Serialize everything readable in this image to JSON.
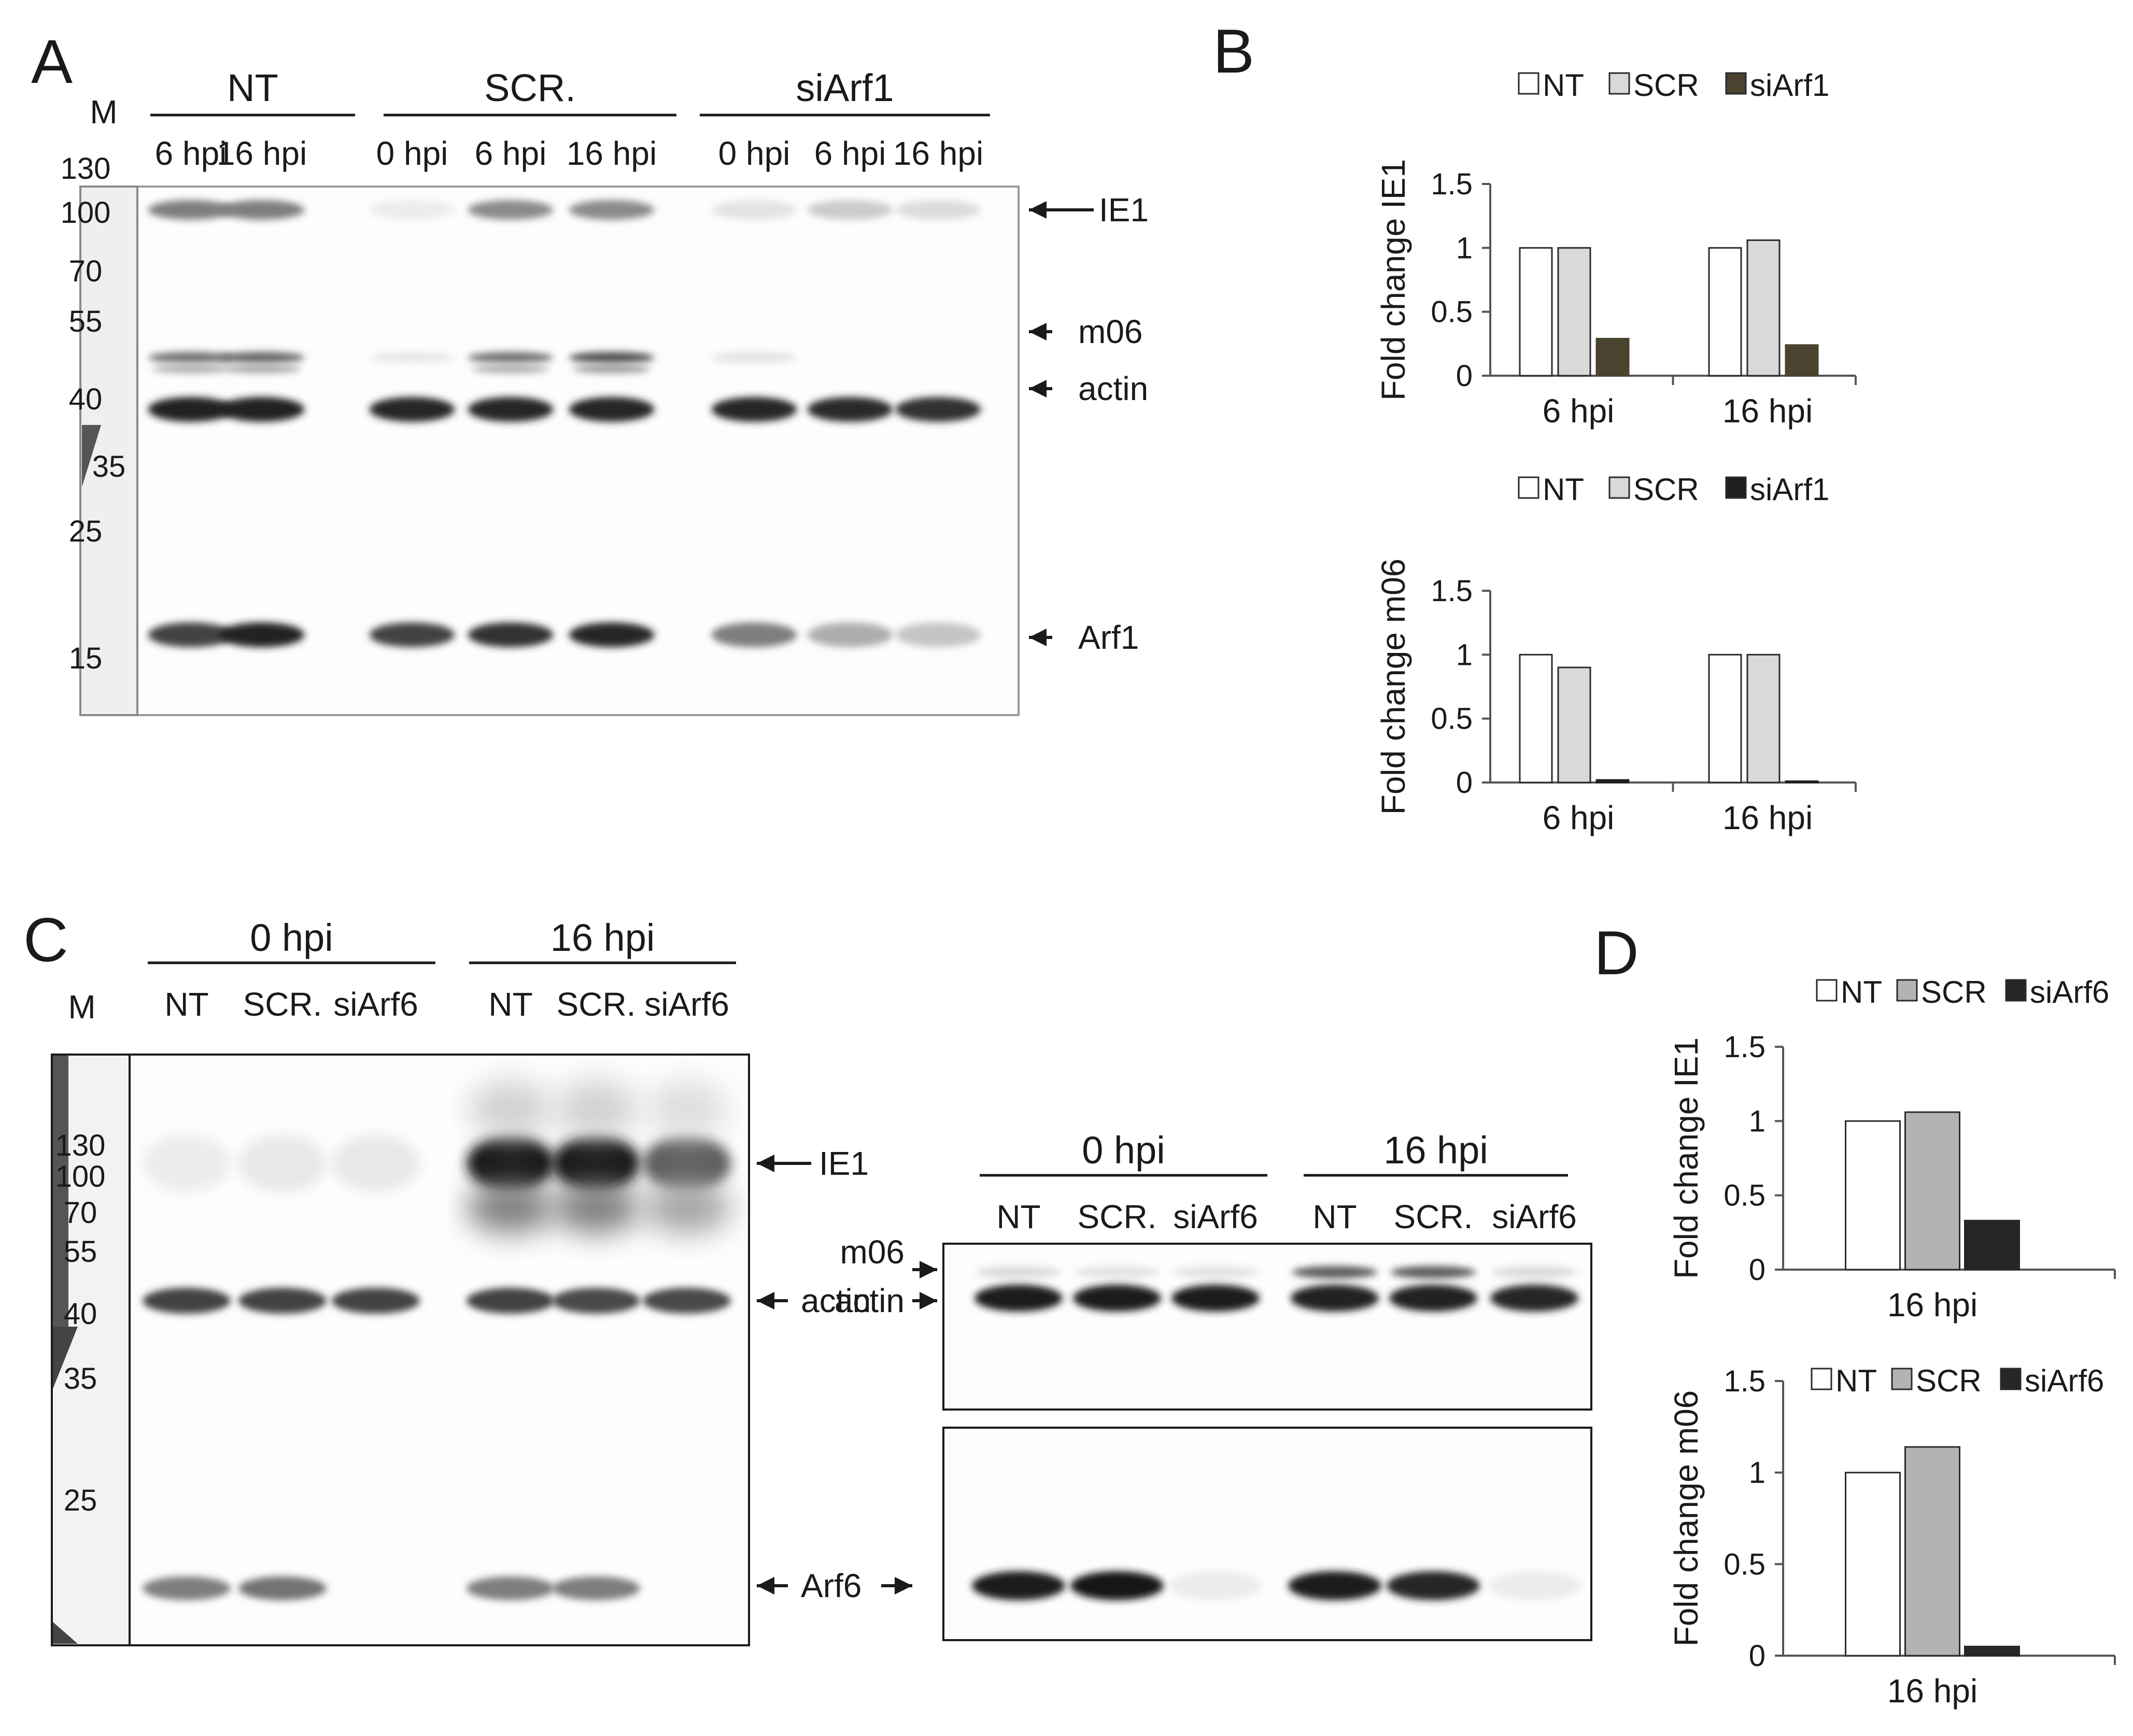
{
  "panels": {
    "A": {
      "letter": "A",
      "marker_header": "M",
      "groups": [
        {
          "name": "NT",
          "lanes": [
            "6 hpi",
            "16 hpi"
          ]
        },
        {
          "name": "SCR.",
          "lanes": [
            "0 hpi",
            "6 hpi",
            "16 hpi"
          ]
        },
        {
          "name": "siArf1",
          "lanes": [
            "0 hpi",
            "6 hpi",
            "16 hpi"
          ]
        }
      ],
      "markers": [
        "130",
        "100",
        "70",
        "55",
        "40",
        "35",
        "25",
        "15"
      ],
      "band_labels": [
        "IE1",
        "m06",
        "actin",
        "Arf1"
      ],
      "band_intensity": {
        "IE1": [
          0.55,
          0.55,
          0.08,
          0.5,
          0.5,
          0.12,
          0.22,
          0.15
        ],
        "m06": [
          0.6,
          0.65,
          0.1,
          0.6,
          0.75,
          0.12,
          0.0,
          0.0
        ],
        "actin": [
          0.95,
          0.95,
          0.92,
          0.92,
          0.92,
          0.92,
          0.9,
          0.88
        ],
        "Arf1": [
          0.8,
          0.95,
          0.8,
          0.88,
          0.92,
          0.55,
          0.35,
          0.25
        ]
      }
    },
    "B": {
      "letter": "B",
      "colors": {
        "NT": "#ffffff",
        "SCR": "#d9d9d9",
        "siArf1_ie1": "#4a4330",
        "siArf1_m06": "#1e1e1e"
      }
    },
    "C": {
      "letter": "C",
      "marker_header": "M",
      "groups": [
        {
          "name": "0 hpi",
          "lanes": [
            "NT",
            "SCR.",
            "siArf6"
          ]
        },
        {
          "name": "16 hpi",
          "lanes": [
            "NT",
            "SCR.",
            "siArf6"
          ]
        }
      ],
      "markers": [
        "130",
        "100",
        "70",
        "55",
        "40",
        "35",
        "25"
      ],
      "band_labels": [
        "IE1",
        "actin",
        "Arf6"
      ],
      "right_blot": {
        "groups": [
          {
            "name": "0 hpi",
            "lanes": [
              "NT",
              "SCR.",
              "siArf6"
            ]
          },
          {
            "name": "16 hpi",
            "lanes": [
              "NT",
              "SCR.",
              "siArf6"
            ]
          }
        ],
        "band_labels": [
          "m06",
          "actin"
        ]
      },
      "band_intensity": {
        "IE1": [
          0.08,
          0.1,
          0.1,
          0.98,
          0.98,
          0.7
        ],
        "actin": [
          0.8,
          0.8,
          0.8,
          0.8,
          0.78,
          0.78
        ],
        "Arf6": [
          0.55,
          0.6,
          0.0,
          0.55,
          0.55,
          0.0
        ],
        "m06": [
          0.15,
          0.12,
          0.12,
          0.7,
          0.7,
          0.15
        ],
        "actin_right": [
          0.97,
          0.97,
          0.97,
          0.95,
          0.95,
          0.92
        ],
        "Arf6_right": [
          0.97,
          0.98,
          0.08,
          0.97,
          0.92,
          0.08
        ]
      }
    },
    "D": {
      "letter": "D",
      "colors": {
        "NT": "#ffffff",
        "SCR": "#b3b3b3",
        "siArf6": "#262626"
      }
    }
  },
  "chart_data": [
    {
      "type": "bar",
      "panel": "B",
      "categories": [
        "6 hpi",
        "16 hpi"
      ],
      "series": [
        {
          "name": "NT",
          "values": [
            1.0,
            1.0
          ]
        },
        {
          "name": "SCR",
          "values": [
            1.0,
            1.06
          ]
        },
        {
          "name": "siArf1",
          "values": [
            0.29,
            0.24
          ]
        }
      ],
      "ylabel": "Fold change IE1",
      "ylim": [
        0,
        1.5
      ],
      "yticks": [
        "0",
        "0.5",
        "1",
        "1.5"
      ],
      "legend": "top"
    },
    {
      "type": "bar",
      "panel": "B",
      "categories": [
        "6 hpi",
        "16 hpi"
      ],
      "series": [
        {
          "name": "NT",
          "values": [
            1.0,
            1.0
          ]
        },
        {
          "name": "SCR",
          "values": [
            0.9,
            1.0
          ]
        },
        {
          "name": "siArf1",
          "values": [
            0.02,
            0.01
          ]
        }
      ],
      "ylabel": "Fold change m06",
      "ylim": [
        0,
        1.5
      ],
      "yticks": [
        "0",
        "0.5",
        "1",
        "1.5"
      ],
      "legend": "top"
    },
    {
      "type": "bar",
      "panel": "D",
      "categories": [
        "16 hpi"
      ],
      "series": [
        {
          "name": "NT",
          "values": [
            1.0
          ]
        },
        {
          "name": "SCR",
          "values": [
            1.06
          ]
        },
        {
          "name": "siArf6",
          "values": [
            0.33
          ]
        }
      ],
      "ylabel": "Fold change IE1",
      "ylim": [
        0,
        1.5
      ],
      "yticks": [
        "0",
        "0.5",
        "1",
        "1.5"
      ],
      "legend": "top"
    },
    {
      "type": "bar",
      "panel": "D",
      "categories": [
        "16 hpi"
      ],
      "series": [
        {
          "name": "NT",
          "values": [
            1.0
          ]
        },
        {
          "name": "SCR",
          "values": [
            1.14
          ]
        },
        {
          "name": "siArf6",
          "values": [
            0.05
          ]
        }
      ],
      "ylabel": "Fold change m06",
      "ylim": [
        0,
        1.5
      ],
      "yticks": [
        "0",
        "0.5",
        "1",
        "1.5"
      ],
      "legend": "top"
    }
  ]
}
